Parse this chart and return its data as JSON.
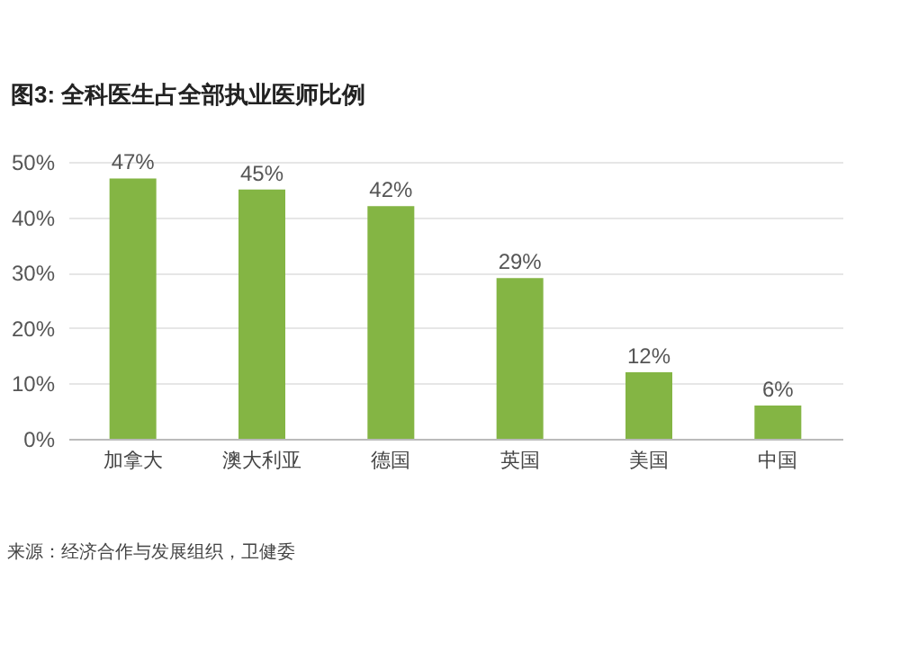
{
  "chart_data": {
    "type": "bar",
    "title": "图3: 全科医生占全部执业医师比例",
    "categories": [
      "加拿大",
      "澳大利亚",
      "德国",
      "英国",
      "美国",
      "中国"
    ],
    "values": [
      47,
      45,
      42,
      29,
      12,
      6
    ],
    "value_labels": [
      "47%",
      "45%",
      "42%",
      "29%",
      "12%",
      "6%"
    ],
    "color": "#84b544",
    "ylim": [
      0,
      50
    ],
    "yticks": [
      {
        "value": 0,
        "label": "0%"
      },
      {
        "value": 10,
        "label": "10%"
      },
      {
        "value": 20,
        "label": "20%"
      },
      {
        "value": 30,
        "label": "30%"
      },
      {
        "value": 40,
        "label": "40%"
      },
      {
        "value": 50,
        "label": "50%"
      }
    ],
    "grid": "y",
    "annotations": [
      "来源：经济合作与发展组织，卫健委"
    ]
  }
}
